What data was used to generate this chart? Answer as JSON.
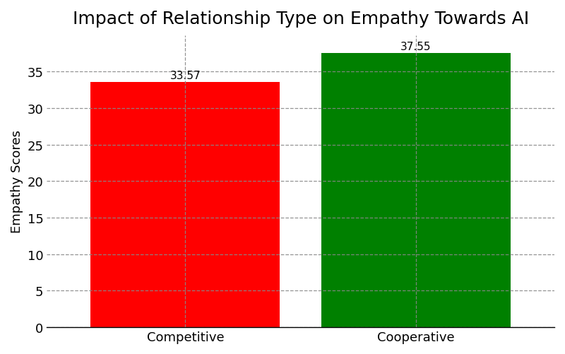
{
  "categories": [
    "Competitive",
    "Cooperative"
  ],
  "values": [
    33.57,
    37.55
  ],
  "bar_colors": [
    "#ff0000",
    "#008000"
  ],
  "title": "Impact of Relationship Type on Empathy Towards AI",
  "ylabel": "Empathy Scores",
  "ylim": [
    0,
    40
  ],
  "yticks": [
    0,
    5,
    10,
    15,
    20,
    25,
    30,
    35
  ],
  "title_fontsize": 18,
  "label_fontsize": 13,
  "tick_fontsize": 13,
  "bar_width": 0.82,
  "grid_color": "#888888",
  "grid_style": "--",
  "grid_alpha": 0.9,
  "background_color": "#ffffff",
  "annotation_fontsize": 11
}
